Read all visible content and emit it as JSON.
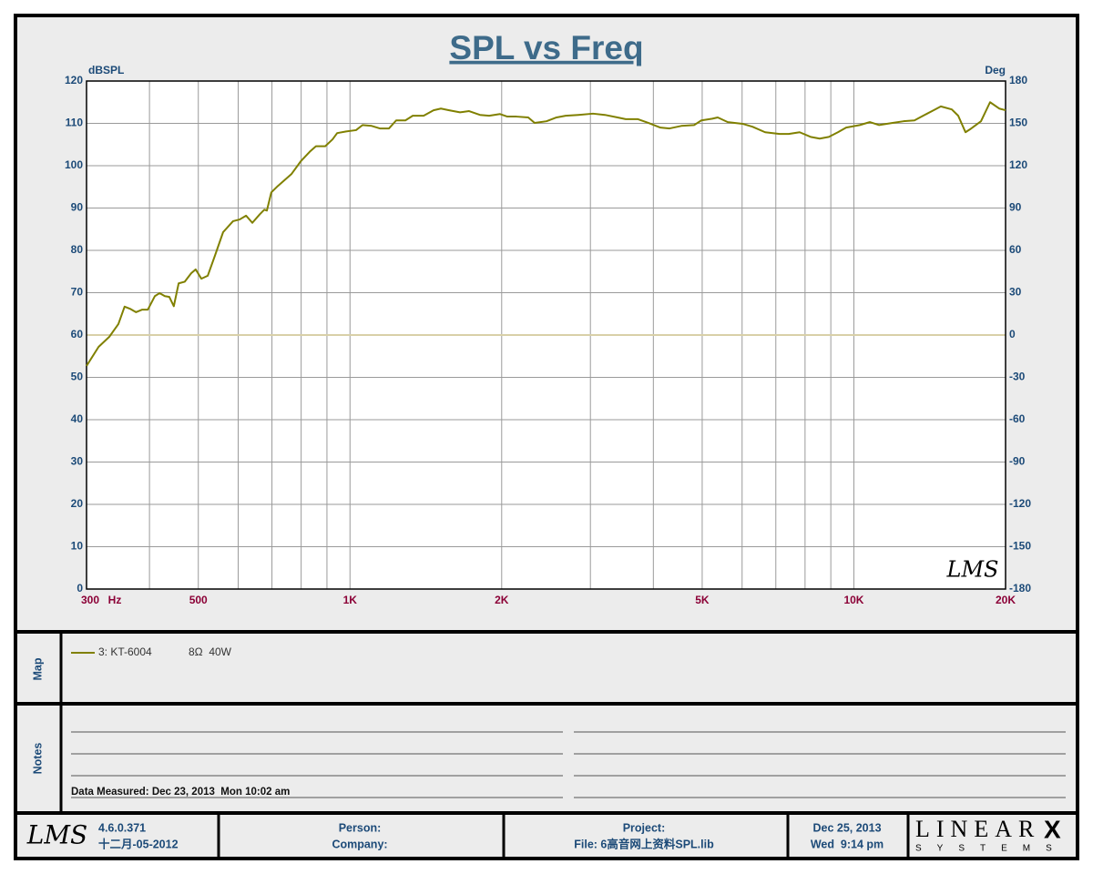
{
  "chart_data": {
    "type": "line",
    "title": "SPL vs Freq",
    "y_label": "dBSPL",
    "y2_label": "Deg",
    "x_unit": "Hz",
    "watermark": "LMS",
    "xscale": "log",
    "xlim": [
      300,
      20000
    ],
    "ylim": [
      0,
      120
    ],
    "y2lim": [
      -180,
      180
    ],
    "xticks": [
      {
        "value": 300,
        "label": "300"
      },
      {
        "value": 500,
        "label": "500"
      },
      {
        "value": 1000,
        "label": "1K"
      },
      {
        "value": 2000,
        "label": "2K"
      },
      {
        "value": 5000,
        "label": "5K"
      },
      {
        "value": 10000,
        "label": "10K"
      },
      {
        "value": 20000,
        "label": "20K"
      }
    ],
    "xgrid": [
      300,
      400,
      500,
      600,
      700,
      800,
      900,
      1000,
      2000,
      3000,
      4000,
      5000,
      6000,
      7000,
      8000,
      9000,
      10000,
      20000
    ],
    "yticks": [
      0,
      10,
      20,
      30,
      40,
      50,
      60,
      70,
      80,
      90,
      100,
      110,
      120
    ],
    "y2ticks": [
      -180,
      -150,
      -120,
      -90,
      -60,
      -30,
      0,
      30,
      60,
      90,
      120,
      150,
      180
    ],
    "grid": true,
    "x": [
      300,
      317,
      333,
      347,
      357,
      366,
      376,
      387,
      397,
      410,
      419,
      429,
      438,
      447,
      457,
      470,
      484,
      494,
      507,
      522,
      540,
      560,
      586,
      604,
      622,
      640,
      662,
      676,
      684,
      698,
      719,
      765,
      798,
      832,
      856,
      893,
      923,
      943,
      983,
      1028,
      1059,
      1104,
      1146,
      1195,
      1235,
      1288,
      1332,
      1400,
      1465,
      1515,
      1573,
      1653,
      1723,
      1811,
      1889,
      1985,
      2052,
      2140,
      2258,
      2325,
      2454,
      2570,
      2679,
      2840,
      3035,
      3205,
      3396,
      3525,
      3723,
      3913,
      4131,
      4308,
      4545,
      4818,
      4981,
      5235,
      5368,
      5620,
      6010,
      6291,
      6666,
      7122,
      7425,
      7805,
      8206,
      8555,
      8918,
      9297,
      9654,
      10272,
      10755,
      11213,
      11936,
      12546,
      13188,
      13523,
      14393,
      14879,
      15643,
      16109,
      16654,
      17005,
      17875,
      18633,
      19428,
      20000
    ],
    "series": [
      {
        "name": "3: KT-6004",
        "color": "#808000",
        "values": [
          52.7,
          57.2,
          59.6,
          62.6,
          66.7,
          66.2,
          65.4,
          66.0,
          66.0,
          69.2,
          69.9,
          69.2,
          69.0,
          66.8,
          72.2,
          72.6,
          74.6,
          75.5,
          73.3,
          74.0,
          78.9,
          84.3,
          86.9,
          87.3,
          88.2,
          86.5,
          88.5,
          89.6,
          89.4,
          93.7,
          95.2,
          98.0,
          101.0,
          103.3,
          104.6,
          104.6,
          106.2,
          107.7,
          108.1,
          108.4,
          109.6,
          109.4,
          108.8,
          108.8,
          110.7,
          110.7,
          111.8,
          111.8,
          113.1,
          113.5,
          113.1,
          112.6,
          112.9,
          112.0,
          111.8,
          112.2,
          111.6,
          111.6,
          111.4,
          110.1,
          110.5,
          111.4,
          111.8,
          112.0,
          112.3,
          112.0,
          111.4,
          111.0,
          111.0,
          110.1,
          109.0,
          108.8,
          109.4,
          109.6,
          110.7,
          111.1,
          111.4,
          110.3,
          109.9,
          109.2,
          107.9,
          107.5,
          107.5,
          107.9,
          106.8,
          106.4,
          106.8,
          107.9,
          109.0,
          109.6,
          110.3,
          109.6,
          110.1,
          110.5,
          110.7,
          111.4,
          113.1,
          114.0,
          113.3,
          111.8,
          107.9,
          108.6,
          110.5,
          115.0,
          113.5,
          113.1
        ]
      }
    ]
  },
  "map": {
    "label": "Map",
    "spec": "8Ω  40W"
  },
  "notes": {
    "label": "Notes",
    "measured": "Data Measured: Dec 23, 2013  Mon 10:02 am"
  },
  "footer": {
    "logo": "LMS",
    "version": "4.6.0.371",
    "build_date": "十二月-05-2012",
    "person": "Person:",
    "company": "Company:",
    "project": "Project:",
    "file": "File: 6高音网上资料SPL.lib",
    "date": "Dec 25, 2013",
    "time": "Wed  9:14 pm",
    "brand": "LINEAR",
    "brand_x": "X",
    "brand_sub": "SYSTEMS"
  }
}
